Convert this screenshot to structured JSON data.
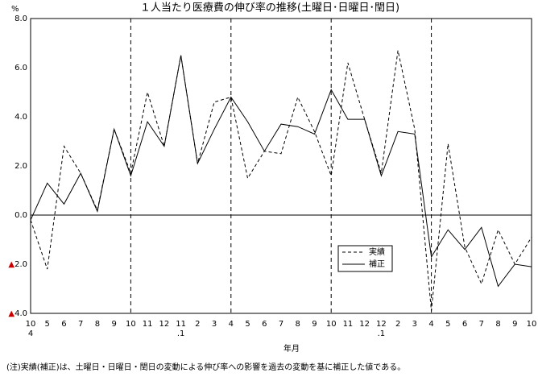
{
  "chart_data": {
    "type": "line",
    "title": "１人当たり医療費の伸び率の推移(土曜日･日曜日･閏日)",
    "y_unit": "%",
    "x_label": "年月",
    "note": "(注)実績(補正)は、土曜日・日曜日・閏日の変動による伸び率への影響を過去の変動を基に補正した値である。",
    "categories": [
      "10",
      "5",
      "6",
      "7",
      "8",
      "9",
      "10",
      "11",
      "12",
      "11",
      "2",
      "3",
      "4",
      "5",
      "6",
      "7",
      "8",
      "9",
      "10",
      "11",
      "12",
      "12",
      "2",
      "3",
      "4",
      "5",
      "6",
      "7",
      "8",
      "9",
      "10"
    ],
    "subcategories": [
      "4",
      null,
      null,
      null,
      null,
      null,
      null,
      null,
      null,
      ".1",
      null,
      null,
      null,
      null,
      null,
      null,
      null,
      null,
      null,
      null,
      null,
      ".1",
      null,
      null,
      null,
      null,
      null,
      null,
      null,
      null,
      null
    ],
    "separators": [
      6,
      12,
      18,
      24
    ],
    "ylim": [
      -4,
      8
    ],
    "yticks": [
      {
        "value": 8,
        "label": "8.0"
      },
      {
        "value": 6,
        "label": "6.0"
      },
      {
        "value": 4,
        "label": "4.0"
      },
      {
        "value": 2,
        "label": "2.0"
      },
      {
        "value": 0,
        "label": "0.0"
      },
      {
        "value": -2,
        "label": "▲2.0"
      },
      {
        "value": -4,
        "label": "▲4.0"
      }
    ],
    "negative_mark_color": "#cc0000",
    "series": [
      {
        "name": "実績",
        "color": "#000000",
        "dash": true,
        "values": [
          -0.2,
          -2.2,
          2.8,
          1.7,
          0.2,
          3.5,
          1.7,
          5.0,
          2.8,
          6.5,
          2.1,
          4.6,
          4.8,
          1.5,
          2.6,
          2.5,
          4.8,
          3.4,
          1.6,
          6.2,
          3.9,
          1.7,
          6.7,
          3.5,
          -3.9,
          2.9,
          -1.3,
          -2.8,
          -0.6,
          -2.0,
          -0.9
        ]
      },
      {
        "name": "補正",
        "color": "#000000",
        "dash": false,
        "values": [
          -0.2,
          1.3,
          0.45,
          1.7,
          0.15,
          3.5,
          1.6,
          3.8,
          2.8,
          6.5,
          2.1,
          3.5,
          4.8,
          3.8,
          2.6,
          3.7,
          3.6,
          3.3,
          5.1,
          3.9,
          3.9,
          1.6,
          3.4,
          3.3,
          -1.7,
          -0.6,
          -1.4,
          -0.5,
          -2.9,
          -2.0,
          -2.1
        ]
      }
    ]
  }
}
